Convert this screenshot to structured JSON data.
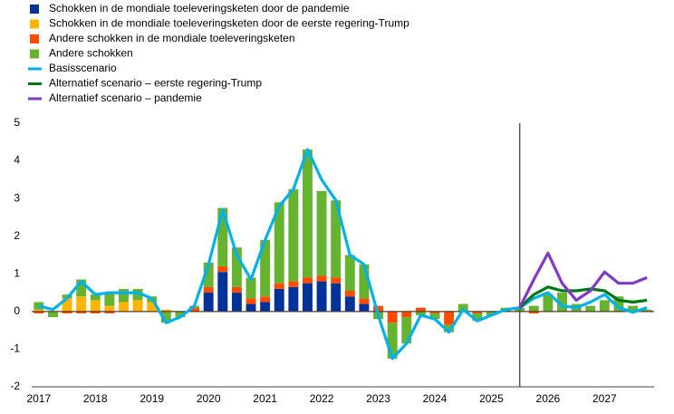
{
  "chart_data": {
    "type": "bar",
    "categories": [
      "2017",
      null,
      null,
      null,
      "2018",
      null,
      null,
      null,
      "2019",
      null,
      null,
      null,
      "2020",
      null,
      null,
      null,
      "2021",
      null,
      null,
      null,
      "2022",
      null,
      null,
      null,
      "2023",
      null,
      null,
      null,
      "2024",
      null,
      null,
      null,
      "2025",
      null,
      null,
      null,
      "2026",
      null,
      null,
      null,
      "2027",
      null,
      null,
      null
    ],
    "ylim": [
      -2,
      5
    ],
    "yticks": [
      -2,
      -1,
      0,
      1,
      2,
      3,
      4,
      5
    ],
    "series": [
      {
        "name": "Schokken in de mondiale toeleveringsketen door de pandemie",
        "kind": "bar",
        "color": "#003299",
        "values": [
          0,
          0,
          0,
          0,
          0,
          0,
          0,
          0,
          0,
          0,
          0,
          0,
          0.5,
          1.05,
          0.5,
          0.2,
          0.25,
          0.6,
          0.65,
          0.75,
          0.8,
          0.75,
          0.4,
          0.2,
          0,
          0,
          0,
          0,
          0,
          0,
          0,
          0,
          0,
          0,
          0,
          0,
          0,
          0,
          0,
          0,
          0,
          0,
          0,
          0
        ]
      },
      {
        "name": "Schokken in de mondiale toeleveringsketen door de eerste regering-Trump",
        "kind": "bar",
        "color": "#ffb400",
        "values": [
          0.05,
          0,
          0.35,
          0.4,
          0.3,
          0.15,
          0.25,
          0.3,
          0.25,
          0.05,
          0,
          0,
          0,
          0,
          0,
          0,
          0,
          0,
          0,
          0,
          0,
          0,
          0,
          0,
          0,
          0,
          0,
          0,
          0,
          0,
          0,
          0,
          0,
          0,
          0,
          0,
          0,
          0,
          0,
          0,
          0,
          0,
          0,
          0
        ]
      },
      {
        "name": "Andere schokken in de mondiale toeleveringsketen",
        "kind": "bar",
        "color": "#ff4b00",
        "values": [
          -0.05,
          0,
          -0.05,
          -0.05,
          -0.05,
          -0.05,
          0,
          0,
          0,
          0,
          0,
          0.1,
          0.15,
          0.15,
          0.15,
          0.15,
          0.15,
          0.15,
          0.15,
          0.15,
          0.15,
          0.15,
          0.15,
          0.15,
          0.15,
          -0.3,
          -0.15,
          0.1,
          -0.05,
          -0.35,
          0,
          -0.05,
          0,
          0,
          0,
          -0.05,
          0,
          0,
          0,
          0,
          0,
          0,
          0,
          0
        ]
      },
      {
        "name": "Andere schokken",
        "kind": "bar",
        "color": "#65b32e",
        "values": [
          0.2,
          -0.15,
          0.1,
          0.45,
          0.15,
          0.35,
          0.35,
          0.3,
          0.15,
          -0.3,
          -0.15,
          0.05,
          0.65,
          1.55,
          1.05,
          0.55,
          1.5,
          2.15,
          2.45,
          3.4,
          2.25,
          2.05,
          0.95,
          0.9,
          -0.2,
          -0.95,
          -0.7,
          -0.1,
          -0.15,
          -0.2,
          0.2,
          -0.2,
          -0.1,
          0.1,
          0.1,
          0.15,
          0.45,
          0.5,
          0.2,
          0.15,
          0.3,
          0.4,
          0.15,
          0.05
        ]
      },
      {
        "name": "Basisscenario",
        "kind": "line",
        "color": "#00b1ea",
        "values": [
          0.15,
          0.05,
          0.35,
          0.8,
          0.45,
          0.5,
          0.5,
          0.5,
          0.35,
          -0.3,
          -0.15,
          0.15,
          1.25,
          2.7,
          1.5,
          0.85,
          1.9,
          2.8,
          3.25,
          4.3,
          3.5,
          2.95,
          1.5,
          1.25,
          -0.1,
          -1.25,
          -0.85,
          -0.1,
          -0.2,
          -0.55,
          0.05,
          -0.25,
          -0.1,
          0.05,
          0.1,
          0.35,
          0.5,
          0.15,
          0.1,
          0.25,
          0.45,
          0.1,
          -0.02,
          0.1
        ]
      },
      {
        "name": "Alternatief scenario – eerste regering-Trump",
        "kind": "line",
        "color": "#007816",
        "values": [
          null,
          null,
          null,
          null,
          null,
          null,
          null,
          null,
          null,
          null,
          null,
          null,
          null,
          null,
          null,
          null,
          null,
          null,
          null,
          null,
          null,
          null,
          null,
          null,
          null,
          null,
          null,
          null,
          null,
          null,
          null,
          null,
          null,
          null,
          0.1,
          0.45,
          0.65,
          0.55,
          0.55,
          0.6,
          0.55,
          0.3,
          0.25,
          0.3
        ]
      },
      {
        "name": "Alternatief scenario – pandemie",
        "kind": "line",
        "color": "#8139c6",
        "values": [
          null,
          null,
          null,
          null,
          null,
          null,
          null,
          null,
          null,
          null,
          null,
          null,
          null,
          null,
          null,
          null,
          null,
          null,
          null,
          null,
          null,
          null,
          null,
          null,
          null,
          null,
          null,
          null,
          null,
          null,
          null,
          null,
          null,
          null,
          0.1,
          0.85,
          1.55,
          0.75,
          0.3,
          0.55,
          1.05,
          0.75,
          0.75,
          0.9
        ]
      }
    ]
  }
}
